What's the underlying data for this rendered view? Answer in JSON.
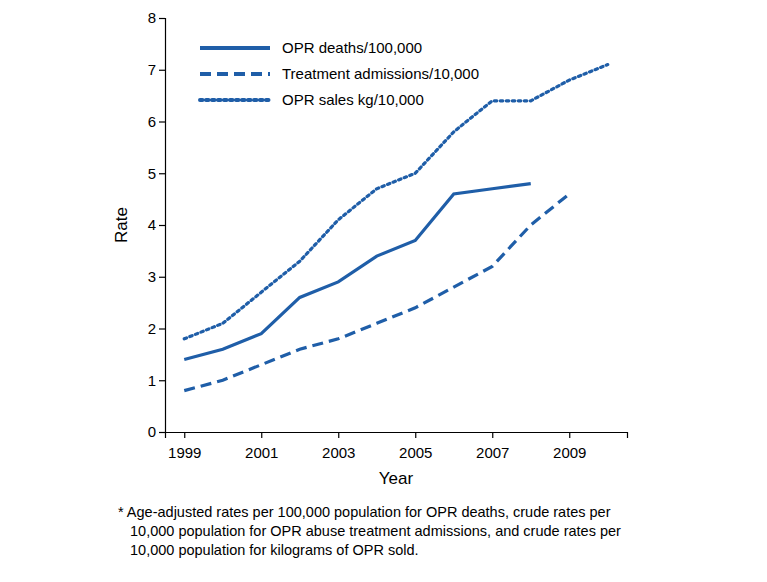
{
  "chart_data": {
    "type": "line",
    "x_label": "Year",
    "y_label": "Rate",
    "x": [
      1999,
      2000,
      2001,
      2002,
      2003,
      2004,
      2005,
      2006,
      2007,
      2008,
      2009,
      2010
    ],
    "series": [
      {
        "name": "OPR deaths/100,000",
        "color": "#1f5ea8",
        "line_style": "solid",
        "values": [
          1.4,
          1.6,
          1.9,
          2.6,
          2.9,
          3.4,
          3.7,
          4.6,
          4.7,
          4.8,
          null,
          null
        ]
      },
      {
        "name": "Treatment admissions/10,000",
        "color": "#1f5ea8",
        "line_style": "dashed",
        "values": [
          0.8,
          1.0,
          1.3,
          1.6,
          1.8,
          2.1,
          2.4,
          2.8,
          3.2,
          4.0,
          4.6,
          null
        ]
      },
      {
        "name": "OPR sales kg/10,000",
        "color": "#1f5ea8",
        "line_style": "dotted",
        "values": [
          1.8,
          2.1,
          2.7,
          3.3,
          4.1,
          4.7,
          5.0,
          5.8,
          6.4,
          6.4,
          6.8,
          7.1
        ]
      }
    ],
    "xlim": [
      1998.5,
      2010.5
    ],
    "xticks": [
      1999,
      2001,
      2003,
      2005,
      2007,
      2009
    ],
    "ylim": [
      0,
      8
    ],
    "yticks": [
      0,
      1,
      2,
      3,
      4,
      5,
      6,
      7,
      8
    ],
    "grid": false,
    "legend": "top-left",
    "annotations": [
      "* Age-adjusted rates per 100,000 population for OPR deaths, crude rates per",
      "10,000 population for OPR abuse treatment admissions, and crude rates per",
      "10,000 population for kilograms of OPR sold."
    ]
  }
}
